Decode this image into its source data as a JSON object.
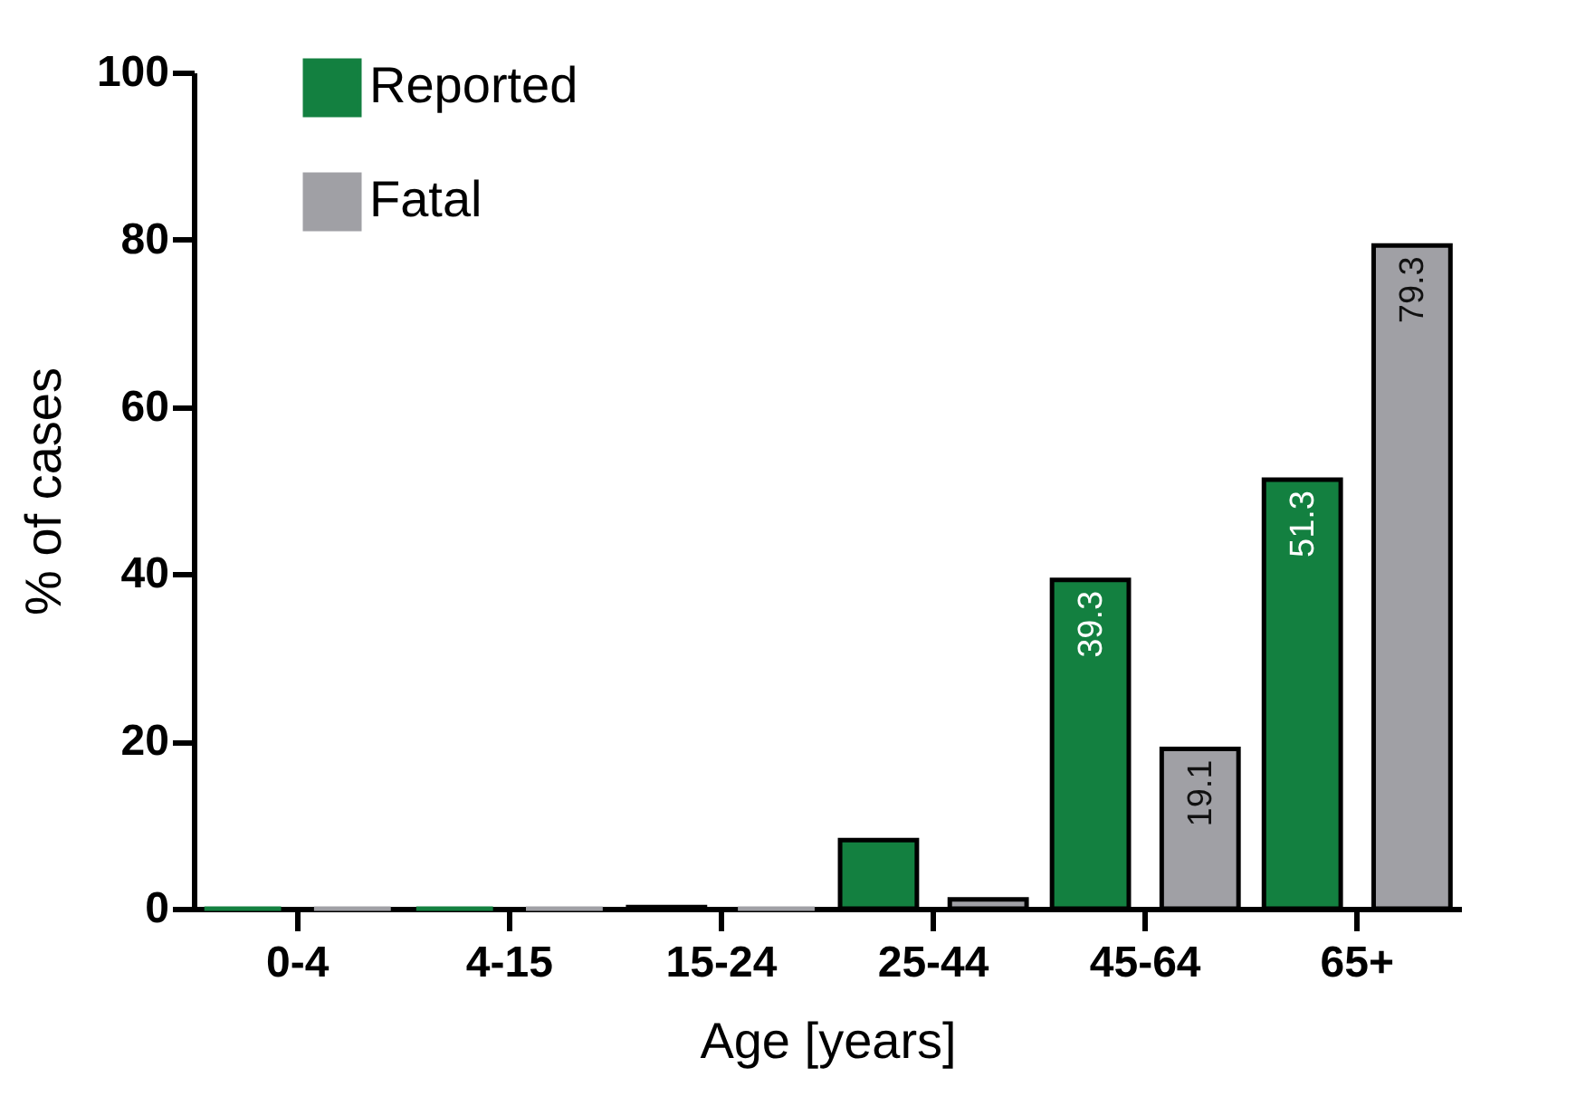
{
  "chart_data": {
    "type": "bar",
    "xlabel": "Age [years]",
    "ylabel": "% of cases",
    "categories": [
      "0-4",
      "4-15",
      "15-24",
      "25-44",
      "45-64",
      "65+"
    ],
    "series": [
      {
        "name": "Reported",
        "color": "#138040",
        "values": [
          0,
          0,
          0.2,
          8.2,
          39.3,
          51.3
        ],
        "value_labels": [
          null,
          null,
          null,
          null,
          "39.3",
          "51.3"
        ]
      },
      {
        "name": "Fatal",
        "color": "#a0a0a5",
        "values": [
          0,
          0,
          0,
          1.1,
          19.1,
          79.3
        ],
        "value_labels": [
          null,
          null,
          null,
          null,
          "19.1",
          "79.3"
        ]
      }
    ],
    "ylim": [
      0,
      100
    ],
    "yticks": [
      0,
      20,
      40,
      60,
      80,
      100
    ],
    "grid": false,
    "legend": "top left"
  }
}
